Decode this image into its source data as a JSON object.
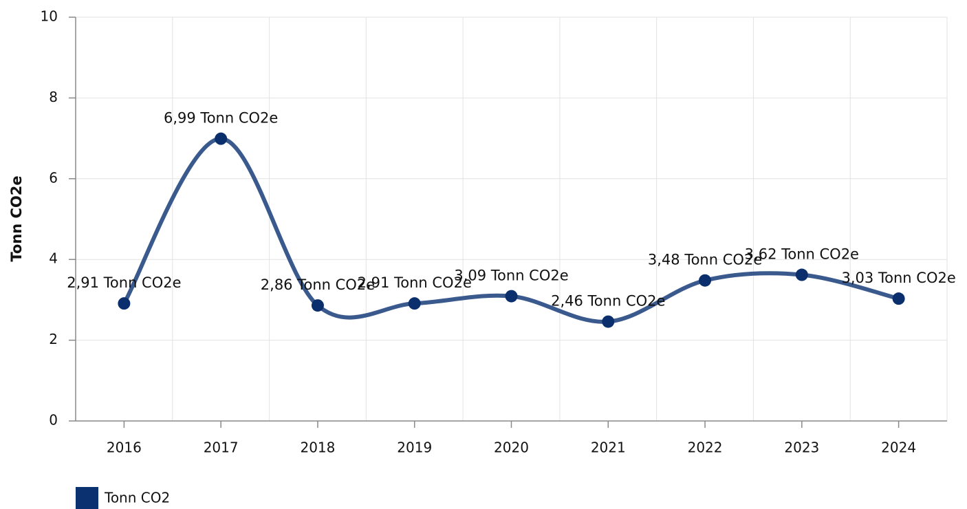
{
  "chart_data": {
    "type": "line",
    "y_axis_label": "Tonn CO2e",
    "categories": [
      "2016",
      "2017",
      "2018",
      "2019",
      "2020",
      "2021",
      "2022",
      "2023",
      "2024"
    ],
    "series": [
      {
        "name": "Tonn CO2",
        "color": "#3a5a8e",
        "marker_color": "#0b2e6c",
        "legend_color": "#0c3170",
        "values": [
          2.91,
          6.99,
          2.86,
          2.91,
          3.09,
          2.46,
          3.48,
          3.62,
          3.03
        ],
        "value_labels": [
          "2,91 Tonn CO2e",
          "6,99 Tonn CO2e",
          "2,86 Tonn CO2e",
          "2,91 Tonn CO2e",
          "3,09 Tonn CO2e",
          "2,46 Tonn CO2e",
          "3,48 Tonn CO2e",
          "3,62 Tonn CO2e",
          "3,03 Tonn CO2e"
        ]
      }
    ],
    "ylim": [
      0,
      10
    ],
    "yticks": [
      0,
      2,
      4,
      6,
      8,
      10
    ],
    "grid": true,
    "smooth": true,
    "legend": "bottom-left"
  }
}
